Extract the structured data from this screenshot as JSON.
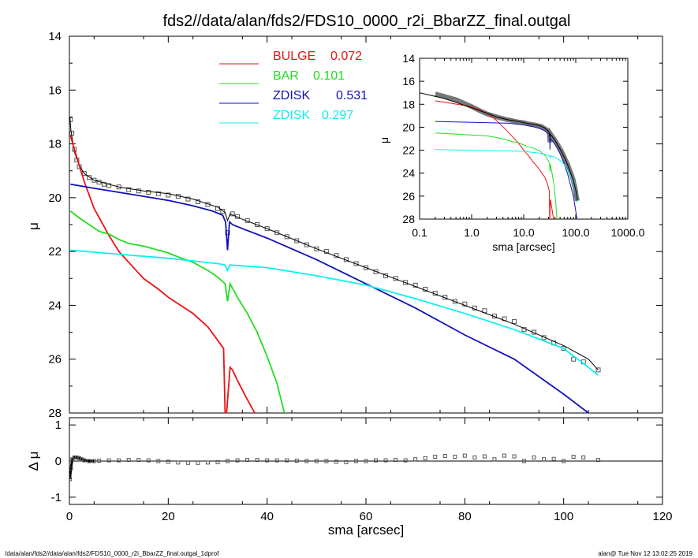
{
  "page": {
    "title": "fds2//data/alan/fds2/FDS10_0000_r2i_BbarZZ_final.outgal",
    "footer_left": "/data/alan/fds2//data/alan/fds2/FDS10_0000_r2i_BbarZZ_final.outgal_1dprof",
    "footer_right": "alan@  Tue Nov 12 13:02:25 2019"
  },
  "colors": {
    "bulge": "#ee1111",
    "bar": "#22dd22",
    "zdisk1": "#1111bb",
    "zdisk2": "#11eeee",
    "data": "#555555",
    "model": "#000000"
  },
  "chart_data": [
    {
      "id": "main",
      "type": "line",
      "xlabel": "sma [arcsec]",
      "ylabel": "μ",
      "xlim": [
        0,
        120
      ],
      "ylim": [
        28,
        14
      ],
      "xticks": [
        "0",
        "20",
        "40",
        "60",
        "80",
        "100",
        "120"
      ],
      "yticks": [
        "14",
        "16",
        "18",
        "20",
        "22",
        "24",
        "26",
        "28"
      ],
      "legend_position": "top-center",
      "series": [
        {
          "name": "BULGE",
          "value_label": "0.072",
          "color": "bulge",
          "x": [
            0.2,
            1,
            2,
            3,
            5,
            8,
            10,
            12,
            15,
            18,
            20,
            25,
            28,
            30,
            31.2,
            31.5,
            31.8,
            32.5,
            33,
            34,
            36,
            37.5
          ],
          "y": [
            17.7,
            18.2,
            18.8,
            19.4,
            20.4,
            21.4,
            22.0,
            22.4,
            23.0,
            23.4,
            23.7,
            24.3,
            24.8,
            25.3,
            25.6,
            28.0,
            28.0,
            26.3,
            26.4,
            26.8,
            27.5,
            28.0
          ]
        },
        {
          "name": "BAR",
          "value_label": "0.101",
          "color": "bar",
          "x": [
            0.2,
            2,
            4,
            6,
            8,
            10,
            12,
            15,
            18,
            20,
            22,
            25,
            28,
            30,
            31.5,
            32,
            32.5,
            34,
            36,
            38,
            40,
            42,
            43.5
          ],
          "y": [
            20.5,
            20.75,
            21.0,
            21.25,
            21.35,
            21.55,
            21.7,
            21.8,
            21.95,
            22.05,
            22.2,
            22.4,
            22.7,
            22.95,
            23.2,
            23.85,
            23.2,
            23.7,
            24.3,
            25.0,
            25.9,
            26.9,
            28.0
          ]
        },
        {
          "name": "ZDISK",
          "value_label": "0.531",
          "color": "zdisk1",
          "x": [
            0.2,
            5,
            10,
            15,
            20,
            25,
            29,
            31,
            31.6,
            32,
            32.4,
            33,
            35,
            40,
            50,
            60,
            70,
            80,
            90,
            100,
            105
          ],
          "y": [
            19.5,
            19.65,
            19.8,
            19.95,
            20.1,
            20.3,
            20.5,
            20.65,
            20.9,
            21.95,
            20.9,
            21.0,
            21.15,
            21.5,
            22.3,
            23.2,
            24.1,
            25.1,
            26.0,
            27.3,
            28.0
          ]
        },
        {
          "name": "ZDISK",
          "value_label": "0.297",
          "color": "zdisk2",
          "x": [
            0.2,
            10,
            20,
            30,
            31.5,
            32,
            32.5,
            40,
            50,
            60,
            70,
            80,
            90,
            100,
            105,
            107
          ],
          "y": [
            21.95,
            22.1,
            22.25,
            22.45,
            22.5,
            22.7,
            22.5,
            22.6,
            22.9,
            23.25,
            23.75,
            24.3,
            24.9,
            25.6,
            26.3,
            26.6
          ]
        }
      ],
      "model_total": {
        "x": [
          0.1,
          0.3,
          1,
          2,
          3,
          5,
          8,
          10,
          15,
          20,
          25,
          30,
          31.5,
          32,
          32.5,
          35,
          40,
          50,
          60,
          70,
          80,
          90,
          100,
          105,
          107
        ],
        "y": [
          17.0,
          17.5,
          18.3,
          18.8,
          19.1,
          19.35,
          19.5,
          19.6,
          19.75,
          19.85,
          20.05,
          20.35,
          20.55,
          20.85,
          20.6,
          20.8,
          21.15,
          21.9,
          22.6,
          23.3,
          24.0,
          24.7,
          25.5,
          26.0,
          26.4
        ]
      },
      "data_points": {
        "x": [
          0.2,
          0.5,
          1,
          1.5,
          2,
          3,
          4,
          5,
          6,
          7,
          8,
          10,
          12,
          14,
          16,
          18,
          20,
          22,
          24,
          26,
          28,
          30,
          31,
          32,
          33,
          34,
          36,
          38,
          40,
          42,
          44,
          46,
          48,
          50,
          52,
          54,
          56,
          58,
          60,
          62,
          64,
          66,
          68,
          70,
          72,
          74,
          76,
          78,
          80,
          82,
          84,
          86,
          88,
          90,
          92,
          94,
          96,
          98,
          100,
          102,
          104,
          107
        ],
        "y": [
          17.1,
          17.6,
          18.2,
          18.6,
          18.85,
          19.1,
          19.25,
          19.35,
          19.42,
          19.5,
          19.55,
          19.6,
          19.7,
          19.75,
          19.8,
          19.85,
          19.9,
          19.95,
          20.05,
          20.15,
          20.25,
          20.4,
          20.5,
          21.3,
          20.6,
          20.7,
          20.85,
          21.0,
          21.15,
          21.3,
          21.45,
          21.6,
          21.75,
          21.9,
          22.0,
          22.15,
          22.3,
          22.45,
          22.6,
          22.75,
          22.9,
          23.0,
          23.15,
          23.25,
          23.4,
          23.55,
          23.7,
          23.85,
          23.95,
          24.1,
          24.2,
          24.4,
          24.5,
          24.6,
          24.9,
          25.0,
          25.2,
          25.4,
          25.6,
          26.0,
          26.1,
          26.4
        ]
      }
    },
    {
      "id": "inset",
      "type": "line",
      "xlabel": "sma [arcsec]",
      "ylabel": "μ",
      "xscale": "log",
      "xlim": [
        0.1,
        1000
      ],
      "ylim": [
        28,
        14
      ],
      "xticks": [
        "0.1",
        "1.0",
        "10.0",
        "100.0",
        "1000.0"
      ],
      "yticks": [
        "14",
        "16",
        "18",
        "20",
        "22",
        "24",
        "26",
        "28"
      ]
    },
    {
      "id": "residuals",
      "type": "scatter",
      "xlabel": "sma [arcsec]",
      "ylabel": "Δ μ",
      "xlim": [
        0,
        120
      ],
      "ylim": [
        -1.2,
        1.2
      ],
      "xticks": [
        "0",
        "20",
        "40",
        "60",
        "80",
        "100",
        "120"
      ],
      "yticks": [
        "1",
        "0",
        "-1"
      ],
      "x": [
        0.1,
        0.3,
        0.6,
        1,
        1.5,
        2,
        2.5,
        3,
        4,
        5,
        6,
        8,
        10,
        12,
        14,
        16,
        18,
        20,
        22,
        24,
        26,
        28,
        30,
        32,
        34,
        36,
        38,
        40,
        42,
        44,
        46,
        48,
        50,
        52,
        54,
        56,
        58,
        60,
        62,
        64,
        66,
        68,
        70,
        72,
        74,
        76,
        78,
        80,
        82,
        84,
        86,
        88,
        90,
        92,
        94,
        96,
        98,
        100,
        102,
        104,
        107
      ],
      "y": [
        -0.5,
        -0.2,
        0.05,
        0.1,
        0.1,
        0.08,
        0.05,
        0.02,
        0.0,
        0.0,
        0.01,
        0.02,
        0.02,
        0.03,
        0.03,
        0.02,
        0.0,
        -0.02,
        -0.04,
        -0.05,
        -0.05,
        -0.04,
        -0.03,
        0.0,
        0.02,
        0.03,
        0.03,
        0.02,
        0.02,
        0.02,
        0.01,
        0.0,
        0.0,
        0.0,
        -0.02,
        -0.03,
        0.0,
        0.0,
        0.02,
        0.02,
        0.03,
        0.02,
        0.05,
        0.08,
        0.12,
        0.14,
        0.12,
        0.15,
        0.1,
        0.13,
        0.05,
        0.15,
        0.13,
        0.0,
        0.1,
        0.05,
        0.06,
        0.0,
        0.12,
        0.1,
        0.03
      ]
    }
  ]
}
